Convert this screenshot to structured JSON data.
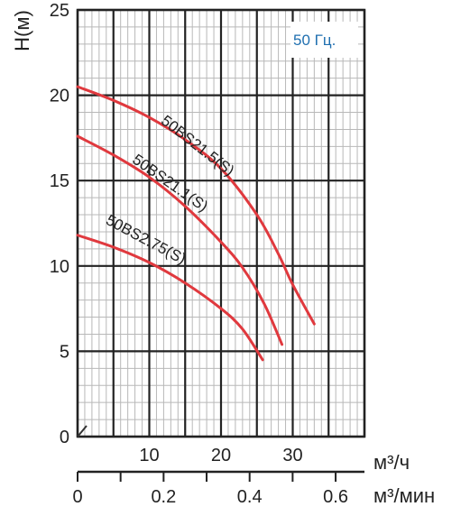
{
  "chart_data": {
    "type": "line",
    "title": "",
    "ylabel": "H(м)",
    "xlabel_primary": "м³/ч",
    "xlabel_secondary": "м³/мин",
    "frequency_label": "50 Гц.",
    "xlim": [
      0,
      40
    ],
    "ylim": [
      0,
      25
    ],
    "x_secondary_lim": [
      0,
      0.667
    ],
    "y_ticks": [
      "0",
      "5",
      "10",
      "15",
      "20",
      "25"
    ],
    "y_tick_values": [
      0,
      5,
      10,
      15,
      20,
      25
    ],
    "x_ticks": [
      "10",
      "20",
      "30"
    ],
    "x_tick_values": [
      10,
      20,
      30
    ],
    "x_secondary_ticks": [
      "0",
      "0.2",
      "0.4",
      "0.6"
    ],
    "x_secondary_tick_values": [
      0,
      0.2,
      0.4,
      0.6
    ],
    "grid": true,
    "series_color": "#e0393e",
    "series": [
      {
        "name": "50BS21.5(S)",
        "x": [
          0,
          5,
          10,
          15,
          20,
          25,
          28,
          30,
          33
        ],
        "y": [
          20.5,
          19.7,
          18.7,
          17.4,
          15.7,
          13.0,
          10.7,
          8.9,
          6.6
        ]
      },
      {
        "name": "50BS21.1(S)",
        "x": [
          0,
          5,
          10,
          15,
          20,
          23,
          26,
          28.5
        ],
        "y": [
          17.6,
          16.5,
          15.2,
          13.5,
          11.4,
          9.9,
          7.8,
          5.4
        ]
      },
      {
        "name": "50BS2.75(S)",
        "x": [
          0,
          5,
          10,
          15,
          20,
          23,
          25.8
        ],
        "y": [
          11.8,
          11.1,
          10.2,
          9.0,
          7.5,
          6.3,
          4.5
        ]
      }
    ]
  }
}
